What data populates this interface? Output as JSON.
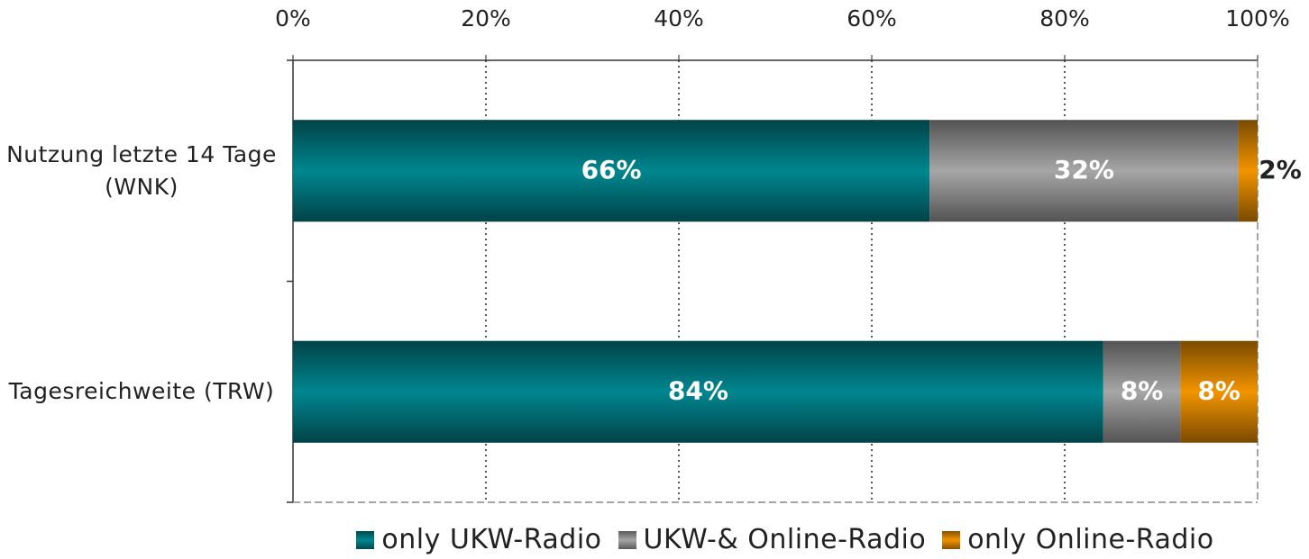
{
  "chart_data": {
    "type": "stacked_bar_horizontal",
    "categories": [
      "Nutzung letzte 14 Tage (WNK)",
      "Tagesreichweite (TRW)"
    ],
    "series": [
      {
        "name": "only UKW-Radio",
        "color": "#00868f",
        "values": [
          66,
          84
        ],
        "value_labels": [
          "66%",
          "84%"
        ]
      },
      {
        "name": "UKW-& Online-Radio",
        "color": "#a6a6a6",
        "values": [
          32,
          8
        ],
        "value_labels": [
          "32%",
          "8%"
        ]
      },
      {
        "name": "only Online-Radio",
        "color": "#f29400",
        "values": [
          2,
          8
        ],
        "value_labels": [
          "2%",
          "8%"
        ]
      }
    ],
    "xlim": [
      0,
      100
    ],
    "xticks": [
      {
        "value": 0,
        "label": "0%"
      },
      {
        "value": 20,
        "label": "20%"
      },
      {
        "value": 40,
        "label": "40%"
      },
      {
        "value": 60,
        "label": "60%"
      },
      {
        "value": 80,
        "label": "80%"
      },
      {
        "value": 100,
        "label": "100%"
      }
    ],
    "grid": true,
    "legend": "bottom"
  }
}
